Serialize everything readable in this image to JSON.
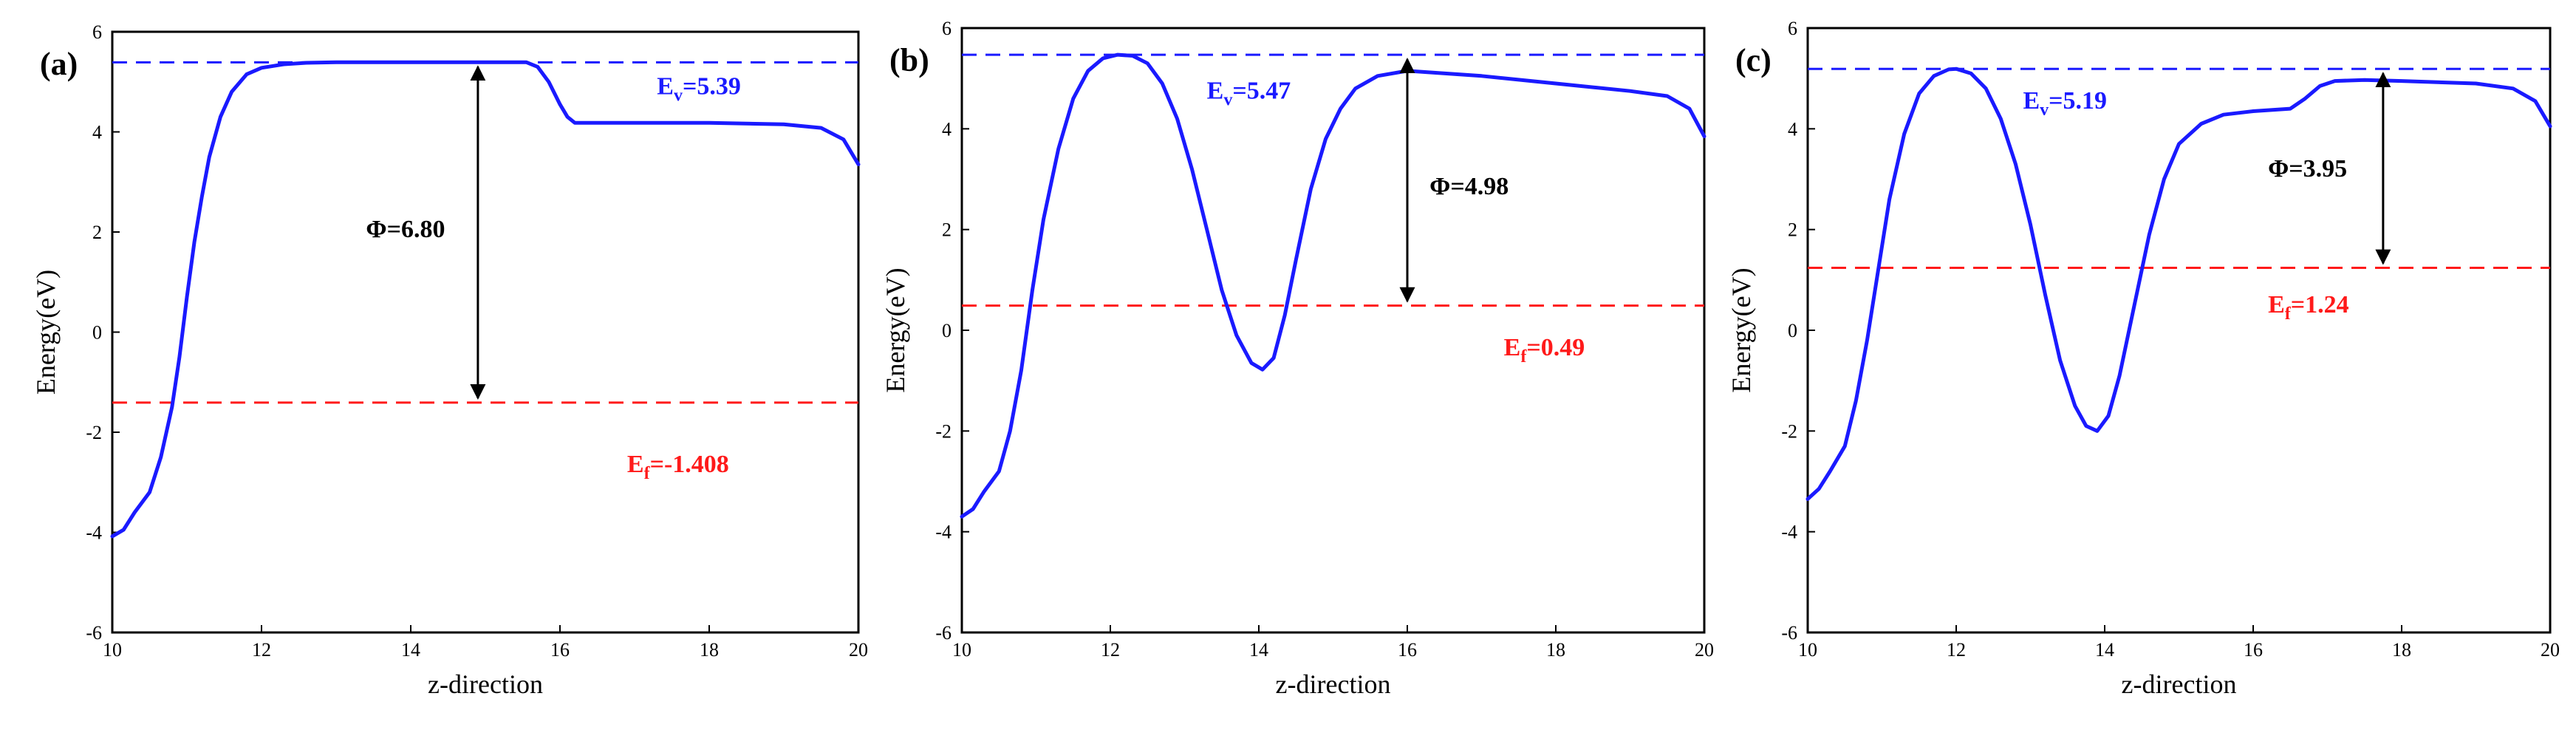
{
  "chart_data": [
    {
      "type": "line",
      "panel_label": "(a)",
      "xlabel": "z-direction",
      "ylabel": "Energy(eV)",
      "xlim": [
        10,
        20
      ],
      "ylim": [
        -6,
        6
      ],
      "xticks": [
        10,
        12,
        14,
        16,
        18,
        20
      ],
      "yticks": [
        -6,
        -4,
        -2,
        0,
        2,
        4,
        6
      ],
      "grid": false,
      "series": [
        {
          "color": "#1a1aff",
          "x": [
            10.0,
            10.15,
            10.3,
            10.5,
            10.65,
            10.8,
            10.9,
            11.0,
            11.1,
            11.2,
            11.3,
            11.45,
            11.6,
            11.8,
            12.0,
            12.3,
            12.6,
            13.0,
            14.0,
            15.0,
            15.55,
            15.7,
            15.85,
            16.0,
            16.1,
            16.2,
            17.0,
            18.0,
            19.0,
            19.5,
            19.8,
            20.0
          ],
          "y": [
            -4.08,
            -3.95,
            -3.6,
            -3.2,
            -2.5,
            -1.5,
            -0.5,
            0.7,
            1.8,
            2.7,
            3.5,
            4.3,
            4.8,
            5.15,
            5.28,
            5.35,
            5.38,
            5.39,
            5.39,
            5.39,
            5.39,
            5.3,
            5.0,
            4.55,
            4.3,
            4.18,
            4.18,
            4.18,
            4.15,
            4.08,
            3.85,
            3.35
          ]
        }
      ],
      "reference_lines": [
        {
          "y": 5.39,
          "color": "#1a1aff",
          "style": "dashed"
        },
        {
          "y": -1.408,
          "color": "#ff1a1a",
          "style": "dashed"
        }
      ],
      "arrow": {
        "x": 14.9,
        "y1": -1.408,
        "y2": 5.39
      },
      "annotations": {
        "ev": {
          "base": "E",
          "sub": "v",
          "rest": "=5.39",
          "x": 17.3,
          "y": 4.75,
          "color": "#1a1aff"
        },
        "phi": {
          "text": "Φ=6.80",
          "x": 13.4,
          "y": 1.9,
          "color": "#000000"
        },
        "ef": {
          "base": "E",
          "sub": "f",
          "rest": "=-1.408",
          "x": 16.9,
          "y": -2.8,
          "color": "#ff1a1a"
        }
      }
    },
    {
      "type": "line",
      "panel_label": "(b)",
      "xlabel": "z-direction",
      "ylabel": "Energy(eV)",
      "xlim": [
        10,
        20
      ],
      "ylim": [
        -6,
        6
      ],
      "xticks": [
        10,
        12,
        14,
        16,
        18,
        20
      ],
      "yticks": [
        -6,
        -4,
        -2,
        0,
        2,
        4,
        6
      ],
      "grid": false,
      "series": [
        {
          "color": "#1a1aff",
          "x": [
            10.0,
            10.15,
            10.3,
            10.5,
            10.65,
            10.8,
            10.95,
            11.1,
            11.3,
            11.5,
            11.7,
            11.9,
            12.1,
            12.3,
            12.5,
            12.7,
            12.9,
            13.1,
            13.3,
            13.5,
            13.7,
            13.9,
            14.05,
            14.2,
            14.35,
            14.5,
            14.7,
            14.9,
            15.1,
            15.3,
            15.6,
            16.0,
            17.0,
            18.0,
            19.0,
            19.5,
            19.8,
            20.0
          ],
          "y": [
            -3.7,
            -3.55,
            -3.2,
            -2.8,
            -2.0,
            -0.8,
            0.8,
            2.2,
            3.6,
            4.6,
            5.15,
            5.4,
            5.47,
            5.45,
            5.3,
            4.9,
            4.2,
            3.2,
            2.0,
            0.8,
            -0.1,
            -0.65,
            -0.78,
            -0.55,
            0.3,
            1.4,
            2.8,
            3.8,
            4.4,
            4.8,
            5.05,
            5.15,
            5.05,
            4.9,
            4.75,
            4.65,
            4.4,
            3.85
          ]
        }
      ],
      "reference_lines": [
        {
          "y": 5.47,
          "color": "#1a1aff",
          "style": "dashed"
        },
        {
          "y": 0.49,
          "color": "#ff1a1a",
          "style": "dashed"
        }
      ],
      "arrow": {
        "x": 16.0,
        "y1": 0.49,
        "y2": 5.47
      },
      "annotations": {
        "ev": {
          "base": "E",
          "sub": "v",
          "rest": "=5.47",
          "x": 13.3,
          "y": 4.6,
          "color": "#1a1aff"
        },
        "phi": {
          "text": "Φ=4.98",
          "x": 16.3,
          "y": 2.7,
          "color": "#000000"
        },
        "ef": {
          "base": "E",
          "sub": "f",
          "rest": "=0.49",
          "x": 17.3,
          "y": -0.5,
          "color": "#ff1a1a"
        }
      }
    },
    {
      "type": "line",
      "panel_label": "(c)",
      "xlabel": "z-direction",
      "ylabel": "Energy(eV)",
      "xlim": [
        10,
        20
      ],
      "ylim": [
        -6,
        6
      ],
      "xticks": [
        10,
        12,
        14,
        16,
        18,
        20
      ],
      "yticks": [
        -6,
        -4,
        -2,
        0,
        2,
        4,
        6
      ],
      "grid": false,
      "series": [
        {
          "color": "#1a1aff",
          "x": [
            10.0,
            10.15,
            10.3,
            10.5,
            10.65,
            10.8,
            10.95,
            11.1,
            11.3,
            11.5,
            11.7,
            11.9,
            12.0,
            12.2,
            12.4,
            12.6,
            12.8,
            13.0,
            13.2,
            13.4,
            13.6,
            13.75,
            13.9,
            14.05,
            14.2,
            14.4,
            14.6,
            14.8,
            15.0,
            15.3,
            15.6,
            16.0,
            16.5,
            16.7,
            16.9,
            17.1,
            17.5,
            18.0,
            19.0,
            19.5,
            19.8,
            20.0
          ],
          "y": [
            -3.35,
            -3.15,
            -2.8,
            -2.3,
            -1.4,
            -0.2,
            1.2,
            2.6,
            3.9,
            4.7,
            5.05,
            5.18,
            5.19,
            5.1,
            4.8,
            4.2,
            3.3,
            2.1,
            0.7,
            -0.6,
            -1.5,
            -1.9,
            -2.0,
            -1.7,
            -0.9,
            0.5,
            1.9,
            3.0,
            3.7,
            4.1,
            4.28,
            4.35,
            4.4,
            4.6,
            4.85,
            4.95,
            4.97,
            4.95,
            4.9,
            4.8,
            4.55,
            4.05
          ]
        }
      ],
      "reference_lines": [
        {
          "y": 5.19,
          "color": "#1a1aff",
          "style": "dashed"
        },
        {
          "y": 1.24,
          "color": "#ff1a1a",
          "style": "dashed"
        }
      ],
      "arrow": {
        "x": 17.75,
        "y1": 1.24,
        "y2": 5.19
      },
      "annotations": {
        "ev": {
          "base": "E",
          "sub": "v",
          "rest": "=5.19",
          "x": 12.9,
          "y": 4.4,
          "color": "#1a1aff"
        },
        "phi": {
          "text": "Φ=3.95",
          "x": 16.2,
          "y": 3.05,
          "color": "#000000"
        },
        "ef": {
          "base": "E",
          "sub": "f",
          "rest": "=1.24",
          "x": 16.2,
          "y": 0.35,
          "color": "#ff1a1a"
        }
      }
    }
  ]
}
